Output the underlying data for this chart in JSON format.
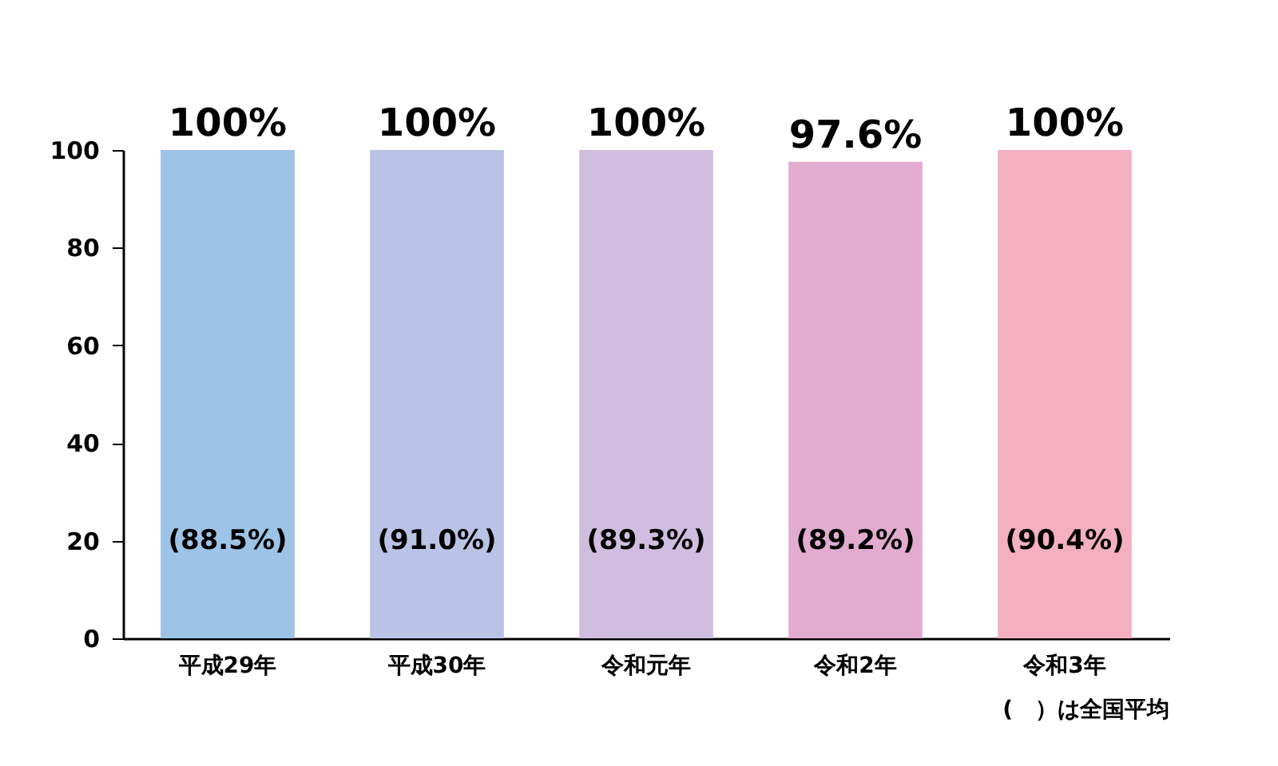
{
  "chart_data": {
    "type": "bar",
    "categories": [
      "平成29年",
      "平成30年",
      "令和元年",
      "令和2年",
      "令和3年"
    ],
    "values": [
      100,
      100,
      100,
      97.6,
      100
    ],
    "colors": [
      "#9dc3e6",
      "#b9c3e5",
      "#d0bde0",
      "#e2abd0",
      "#f4b0c0"
    ],
    "value_labels": [
      "100%",
      "100%",
      "100%",
      "97.6%",
      "100%"
    ],
    "ylim": [
      0,
      100
    ],
    "yticks": [
      0,
      20,
      40,
      60,
      80,
      100
    ],
    "grid": false,
    "legend": false,
    "annotations": [
      "(88.5%)",
      "(91.0%)",
      "(89.3%)",
      "(89.2%)",
      "(90.4%)",
      "(　）は全国平均"
    ]
  }
}
